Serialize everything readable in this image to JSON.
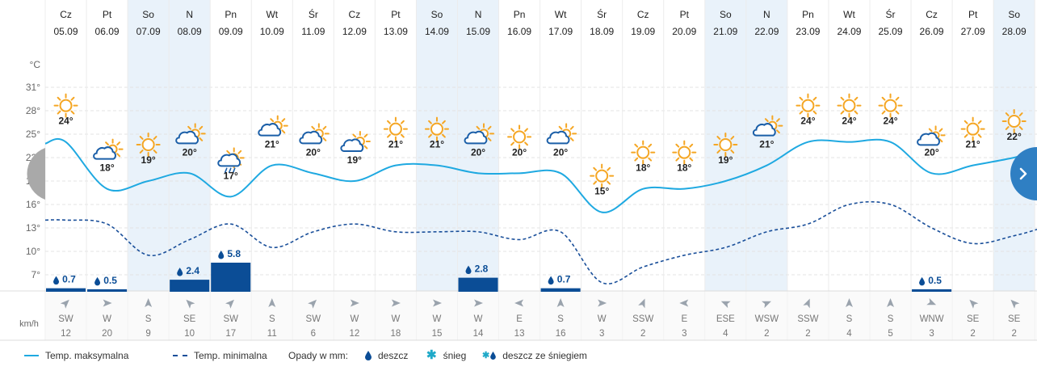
{
  "chart_data": {
    "type": "line",
    "y_axis": {
      "unit_label": "°C",
      "ticks": [
        "31°",
        "28°",
        "25°",
        "22°",
        "19°",
        "16°",
        "13°",
        "10°",
        "7°"
      ]
    },
    "wind_unit": "km/h",
    "days": [
      {
        "dow": "Cz",
        "date": "05.09",
        "weekend": false,
        "tmax": 24,
        "tmin": 14,
        "icon": "sun-icon",
        "precip": 0.7,
        "precip_label": "0.7",
        "wind_dir": "SW",
        "wind_speed": "12"
      },
      {
        "dow": "Pt",
        "date": "06.09",
        "weekend": false,
        "tmax": 18,
        "tmin": 13.5,
        "icon": "partly-cloudy-icon",
        "precip": 0.5,
        "precip_label": "0.5",
        "wind_dir": "W",
        "wind_speed": "20"
      },
      {
        "dow": "So",
        "date": "07.09",
        "weekend": true,
        "tmax": 19,
        "tmin": 9.5,
        "icon": "sun-icon",
        "precip": 0,
        "precip_label": "",
        "wind_dir": "S",
        "wind_speed": "9"
      },
      {
        "dow": "N",
        "date": "08.09",
        "weekend": true,
        "tmax": 20,
        "tmin": 11.5,
        "icon": "partly-cloudy-icon",
        "precip": 2.4,
        "precip_label": "2.4",
        "wind_dir": "SE",
        "wind_speed": "10"
      },
      {
        "dow": "Pn",
        "date": "09.09",
        "weekend": false,
        "tmax": 17,
        "tmin": 13.5,
        "icon": "sun-rain-icon",
        "precip": 5.8,
        "precip_label": "5.8",
        "wind_dir": "SW",
        "wind_speed": "17"
      },
      {
        "dow": "Wt",
        "date": "10.09",
        "weekend": false,
        "tmax": 21,
        "tmin": 10.5,
        "icon": "partly-cloudy-icon",
        "precip": 0,
        "precip_label": "",
        "wind_dir": "S",
        "wind_speed": "11"
      },
      {
        "dow": "Śr",
        "date": "11.09",
        "weekend": false,
        "tmax": 20,
        "tmin": 12.5,
        "icon": "partly-cloudy-icon",
        "precip": 0,
        "precip_label": "",
        "wind_dir": "SW",
        "wind_speed": "6"
      },
      {
        "dow": "Cz",
        "date": "12.09",
        "weekend": false,
        "tmax": 19,
        "tmin": 13.5,
        "icon": "partly-cloudy-icon",
        "precip": 0,
        "precip_label": "",
        "wind_dir": "W",
        "wind_speed": "12"
      },
      {
        "dow": "Pt",
        "date": "13.09",
        "weekend": false,
        "tmax": 21,
        "tmin": 12.5,
        "icon": "sun-icon",
        "precip": 0,
        "precip_label": "",
        "wind_dir": "W",
        "wind_speed": "18"
      },
      {
        "dow": "So",
        "date": "14.09",
        "weekend": true,
        "tmax": 21,
        "tmin": 12.5,
        "icon": "sun-icon",
        "precip": 0,
        "precip_label": "",
        "wind_dir": "W",
        "wind_speed": "15"
      },
      {
        "dow": "N",
        "date": "15.09",
        "weekend": true,
        "tmax": 20,
        "tmin": 12.5,
        "icon": "partly-cloudy-icon",
        "precip": 2.8,
        "precip_label": "2.8",
        "wind_dir": "W",
        "wind_speed": "14"
      },
      {
        "dow": "Pn",
        "date": "16.09",
        "weekend": false,
        "tmax": 20,
        "tmin": 11.5,
        "icon": "sun-icon",
        "precip": 0,
        "precip_label": "",
        "wind_dir": "E",
        "wind_speed": "13"
      },
      {
        "dow": "Wt",
        "date": "17.09",
        "weekend": false,
        "tmax": 20,
        "tmin": 12.5,
        "icon": "partly-cloudy-icon",
        "precip": 0.7,
        "precip_label": "0.7",
        "wind_dir": "S",
        "wind_speed": "16"
      },
      {
        "dow": "Śr",
        "date": "18.09",
        "weekend": false,
        "tmax": 15,
        "tmin": 6,
        "icon": "sun-icon",
        "precip": 0,
        "precip_label": "",
        "wind_dir": "W",
        "wind_speed": "3"
      },
      {
        "dow": "Cz",
        "date": "19.09",
        "weekend": false,
        "tmax": 18,
        "tmin": 8,
        "icon": "sun-icon",
        "precip": 0,
        "precip_label": "",
        "wind_dir": "SSW",
        "wind_speed": "2"
      },
      {
        "dow": "Pt",
        "date": "20.09",
        "weekend": false,
        "tmax": 18,
        "tmin": 9.5,
        "icon": "sun-icon",
        "precip": 0,
        "precip_label": "",
        "wind_dir": "E",
        "wind_speed": "3"
      },
      {
        "dow": "So",
        "date": "21.09",
        "weekend": true,
        "tmax": 19,
        "tmin": 10.5,
        "icon": "sun-icon",
        "precip": 0,
        "precip_label": "",
        "wind_dir": "ESE",
        "wind_speed": "4"
      },
      {
        "dow": "N",
        "date": "22.09",
        "weekend": true,
        "tmax": 21,
        "tmin": 12.5,
        "icon": "partly-cloudy-icon",
        "precip": 0,
        "precip_label": "",
        "wind_dir": "WSW",
        "wind_speed": "2"
      },
      {
        "dow": "Pn",
        "date": "23.09",
        "weekend": false,
        "tmax": 24,
        "tmin": 13.5,
        "icon": "sun-icon",
        "precip": 0,
        "precip_label": "",
        "wind_dir": "SSW",
        "wind_speed": "2"
      },
      {
        "dow": "Wt",
        "date": "24.09",
        "weekend": false,
        "tmax": 24,
        "tmin": 16,
        "icon": "sun-icon",
        "precip": 0,
        "precip_label": "",
        "wind_dir": "S",
        "wind_speed": "4"
      },
      {
        "dow": "Śr",
        "date": "25.09",
        "weekend": false,
        "tmax": 24,
        "tmin": 16,
        "icon": "sun-icon",
        "precip": 0,
        "precip_label": "",
        "wind_dir": "S",
        "wind_speed": "5"
      },
      {
        "dow": "Cz",
        "date": "26.09",
        "weekend": false,
        "tmax": 20,
        "tmin": 13,
        "icon": "sun-cloud-icon",
        "precip": 0.5,
        "precip_label": "0.5",
        "wind_dir": "WNW",
        "wind_speed": "3"
      },
      {
        "dow": "Pt",
        "date": "27.09",
        "weekend": false,
        "tmax": 21,
        "tmin": 11,
        "icon": "sun-icon",
        "precip": 0,
        "precip_label": "",
        "wind_dir": "SE",
        "wind_speed": "2"
      },
      {
        "dow": "So",
        "date": "28.09",
        "weekend": true,
        "tmax": 22,
        "tmin": 12,
        "icon": "sun-icon",
        "precip": 0,
        "precip_label": "",
        "wind_dir": "SE",
        "wind_speed": "2"
      }
    ],
    "colors": {
      "max_line": "#1fa9e1",
      "min_line": "#1a4f9a",
      "precip_bar": "#0b4d96",
      "weekend_bg": "#e9f2fa",
      "sun": "#f5a623",
      "cloud": "#1b5fa8",
      "grid": "#e3e3e3"
    }
  },
  "legend": {
    "max_label": "Temp. maksymalna",
    "min_label": "Temp. minimalna",
    "precip_title": "Opady w mm:",
    "rain_label": "deszcz",
    "snow_label": "śnieg",
    "sleet_label": "deszcz ze śniegiem"
  },
  "nav": {
    "prev_icon": "chevron-left-icon",
    "next_icon": "chevron-right-icon"
  }
}
